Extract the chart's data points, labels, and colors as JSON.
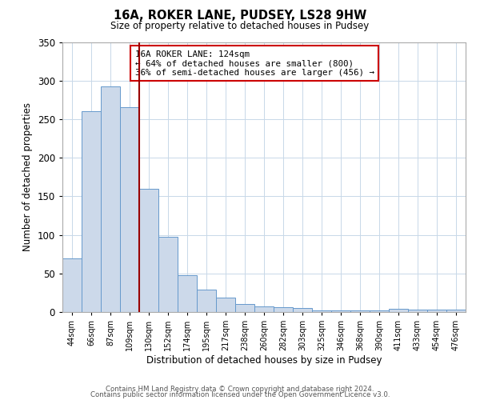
{
  "title": "16A, ROKER LANE, PUDSEY, LS28 9HW",
  "subtitle": "Size of property relative to detached houses in Pudsey",
  "xlabel": "Distribution of detached houses by size in Pudsey",
  "ylabel": "Number of detached properties",
  "bin_labels": [
    "44sqm",
    "66sqm",
    "87sqm",
    "109sqm",
    "130sqm",
    "152sqm",
    "174sqm",
    "195sqm",
    "217sqm",
    "238sqm",
    "260sqm",
    "282sqm",
    "303sqm",
    "325sqm",
    "346sqm",
    "368sqm",
    "390sqm",
    "411sqm",
    "433sqm",
    "454sqm",
    "476sqm"
  ],
  "bar_heights": [
    70,
    260,
    292,
    265,
    160,
    98,
    48,
    29,
    19,
    10,
    7,
    6,
    5,
    2,
    2,
    2,
    2,
    4,
    3,
    3,
    3
  ],
  "bar_color": "#ccd9ea",
  "bar_edge_color": "#6699cc",
  "vline_color": "#990000",
  "vline_x_index": 3.5,
  "annotation_title": "16A ROKER LANE: 124sqm",
  "annotation_line1": "← 64% of detached houses are smaller (800)",
  "annotation_line2": "36% of semi-detached houses are larger (456) →",
  "annotation_box_color": "#ffffff",
  "annotation_box_edge": "#cc0000",
  "ylim": [
    0,
    350
  ],
  "yticks": [
    0,
    50,
    100,
    150,
    200,
    250,
    300,
    350
  ],
  "footer1": "Contains HM Land Registry data © Crown copyright and database right 2024.",
  "footer2": "Contains public sector information licensed under the Open Government Licence v3.0.",
  "bg_color": "#ffffff",
  "grid_color": "#c8d8e8"
}
